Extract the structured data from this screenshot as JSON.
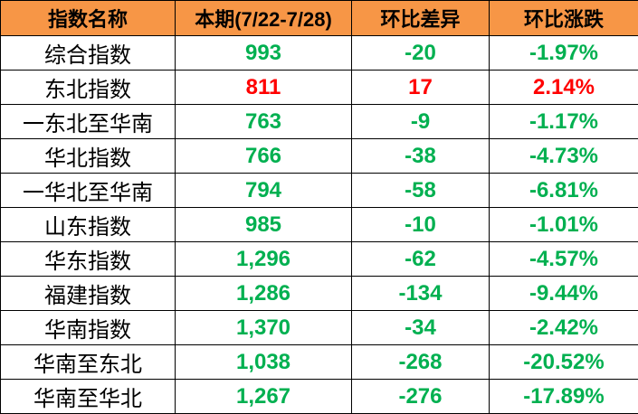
{
  "colors": {
    "header_bg": "#F79646",
    "down": "#00B050",
    "up": "#FF0000"
  },
  "headers": [
    "指数名称",
    "本期(7/22-7/28)",
    "环比差异",
    "环比涨跌"
  ],
  "rows": [
    {
      "name": "综合指数",
      "current": "993",
      "diff": "-20",
      "pct": "-1.97%",
      "trend": "down"
    },
    {
      "name": "东北指数",
      "current": "811",
      "diff": "17",
      "pct": "2.14%",
      "trend": "up"
    },
    {
      "name": "一东北至华南",
      "current": "763",
      "diff": "-9",
      "pct": "-1.17%",
      "trend": "down"
    },
    {
      "name": "华北指数",
      "current": "766",
      "diff": "-38",
      "pct": "-4.73%",
      "trend": "down"
    },
    {
      "name": "一华北至华南",
      "current": "794",
      "diff": "-58",
      "pct": "-6.81%",
      "trend": "down"
    },
    {
      "name": "山东指数",
      "current": "985",
      "diff": "-10",
      "pct": "-1.01%",
      "trend": "down"
    },
    {
      "name": "华东指数",
      "current": "1,296",
      "diff": "-62",
      "pct": "-4.57%",
      "trend": "down"
    },
    {
      "name": "福建指数",
      "current": "1,286",
      "diff": "-134",
      "pct": "-9.44%",
      "trend": "down"
    },
    {
      "name": "华南指数",
      "current": "1,370",
      "diff": "-34",
      "pct": "-2.42%",
      "trend": "down"
    },
    {
      "name": "华南至东北",
      "current": "1,038",
      "diff": "-268",
      "pct": "-20.52%",
      "trend": "down"
    },
    {
      "name": "华南至华北",
      "current": "1,267",
      "diff": "-276",
      "pct": "-17.89%",
      "trend": "down"
    }
  ]
}
